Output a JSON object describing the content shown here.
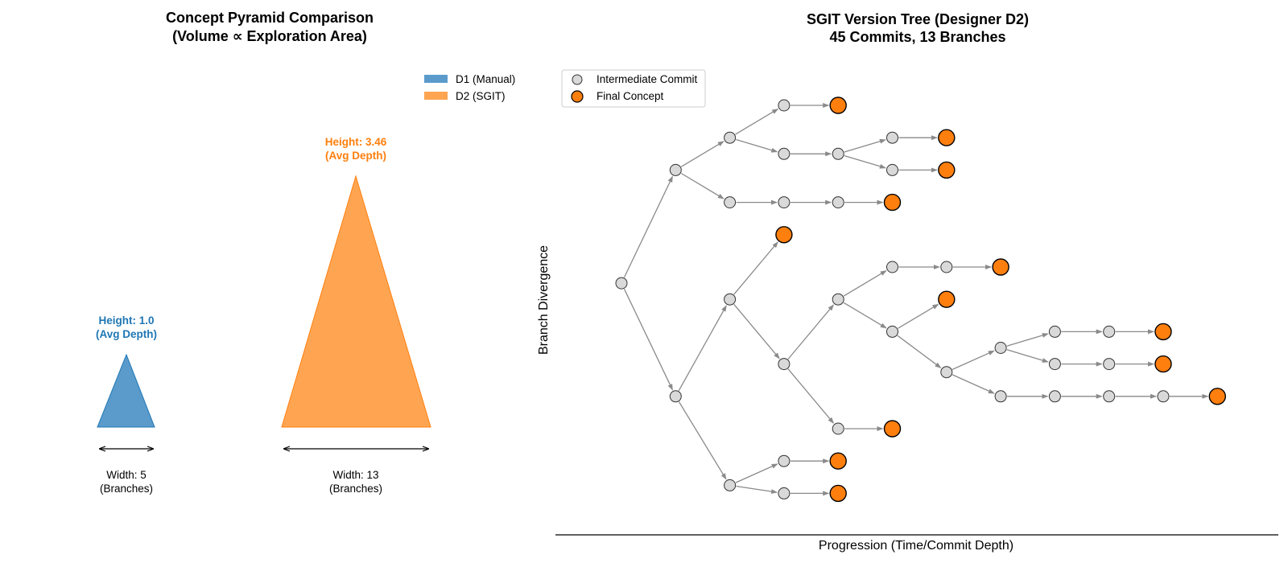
{
  "left_panel": {
    "title_line1": "Concept Pyramid Comparison",
    "title_line2": "(Volume ∝ Exploration Area)",
    "legend": [
      {
        "label": "D1 (Manual)",
        "color": "#5a9bcc"
      },
      {
        "label": "D2 (SGIT)",
        "color": "#ffa552"
      }
    ],
    "pyramids": [
      {
        "name": "D1",
        "height_value": 1.0,
        "width_value": 5,
        "height_label_line1": "Height: 1.0",
        "height_label_line2": "(Avg Depth)",
        "width_label_line1": "Width: 5",
        "width_label_line2": "(Branches)",
        "fill": "#5a9bcc",
        "text_color": "#1f77b4"
      },
      {
        "name": "D2",
        "height_value": 3.46,
        "width_value": 13,
        "height_label_line1": "Height: 3.46",
        "height_label_line2": "(Avg Depth)",
        "width_label_line1": "Width: 13",
        "width_label_line2": "(Branches)",
        "fill": "#ffa552",
        "text_color": "#ff7f0e"
      }
    ]
  },
  "right_panel": {
    "title_line1": "SGIT Version Tree (Designer D2)",
    "title_line2": "45 Commits, 13 Branches",
    "xlabel": "Progression (Time/Commit Depth)",
    "ylabel": "Branch Divergence",
    "legend": [
      {
        "label": "Intermediate Commit",
        "kind": "intermediate"
      },
      {
        "label": "Final Concept",
        "kind": "final"
      }
    ],
    "colors": {
      "intermediate": "#d9d9d9",
      "final": "#ff7f0e",
      "edge": "#8a8a8a"
    },
    "tree": {
      "nodes": [
        {
          "id": "n0",
          "depth": 0,
          "row": 5.5,
          "final": false
        },
        {
          "id": "n1",
          "depth": 1,
          "row": 2,
          "final": false
        },
        {
          "id": "n2",
          "depth": 1,
          "row": 9,
          "final": false
        },
        {
          "id": "n3",
          "depth": 2,
          "row": 1,
          "final": false
        },
        {
          "id": "n4",
          "depth": 2,
          "row": 3,
          "final": false
        },
        {
          "id": "n5",
          "depth": 3,
          "row": 0,
          "final": false
        },
        {
          "id": "n6",
          "depth": 4,
          "row": 0,
          "final": true
        },
        {
          "id": "n7",
          "depth": 3,
          "row": 1.5,
          "final": false
        },
        {
          "id": "n8",
          "depth": 4,
          "row": 1.5,
          "final": false
        },
        {
          "id": "n9",
          "depth": 5,
          "row": 1,
          "final": false
        },
        {
          "id": "n10",
          "depth": 6,
          "row": 1,
          "final": true
        },
        {
          "id": "n11",
          "depth": 5,
          "row": 2,
          "final": false
        },
        {
          "id": "n12",
          "depth": 6,
          "row": 2,
          "final": true
        },
        {
          "id": "n13",
          "depth": 3,
          "row": 3,
          "final": false
        },
        {
          "id": "n14",
          "depth": 4,
          "row": 3,
          "final": false
        },
        {
          "id": "n15",
          "depth": 5,
          "row": 3,
          "final": true
        },
        {
          "id": "n16",
          "depth": 2,
          "row": 6,
          "final": false
        },
        {
          "id": "n17",
          "depth": 3,
          "row": 4,
          "final": true
        },
        {
          "id": "n18",
          "depth": 3,
          "row": 8,
          "final": false
        },
        {
          "id": "n19",
          "depth": 4,
          "row": 6,
          "final": false
        },
        {
          "id": "n20",
          "depth": 5,
          "row": 5,
          "final": false
        },
        {
          "id": "n21",
          "depth": 6,
          "row": 5,
          "final": false
        },
        {
          "id": "n22",
          "depth": 7,
          "row": 5,
          "final": true
        },
        {
          "id": "n23",
          "depth": 5,
          "row": 7,
          "final": false
        },
        {
          "id": "n24",
          "depth": 6,
          "row": 6,
          "final": true
        },
        {
          "id": "n25",
          "depth": 6,
          "row": 8.25,
          "final": false
        },
        {
          "id": "n26",
          "depth": 7,
          "row": 7.5,
          "final": false
        },
        {
          "id": "n27",
          "depth": 8,
          "row": 7,
          "final": false
        },
        {
          "id": "n28",
          "depth": 9,
          "row": 7,
          "final": false
        },
        {
          "id": "n29",
          "depth": 10,
          "row": 7,
          "final": true
        },
        {
          "id": "n30",
          "depth": 8,
          "row": 8,
          "final": false
        },
        {
          "id": "n31",
          "depth": 9,
          "row": 8,
          "final": false
        },
        {
          "id": "n32",
          "depth": 10,
          "row": 8,
          "final": true
        },
        {
          "id": "n33",
          "depth": 7,
          "row": 9,
          "final": false
        },
        {
          "id": "n34",
          "depth": 8,
          "row": 9,
          "final": false
        },
        {
          "id": "n35",
          "depth": 9,
          "row": 9,
          "final": false
        },
        {
          "id": "n36",
          "depth": 10,
          "row": 9,
          "final": false
        },
        {
          "id": "n37",
          "depth": 11,
          "row": 9,
          "final": true
        },
        {
          "id": "n38",
          "depth": 4,
          "row": 10,
          "final": false
        },
        {
          "id": "n39",
          "depth": 5,
          "row": 10,
          "final": true
        },
        {
          "id": "n40",
          "depth": 2,
          "row": 11.75,
          "final": false
        },
        {
          "id": "n41",
          "depth": 3,
          "row": 11,
          "final": false
        },
        {
          "id": "n42",
          "depth": 4,
          "row": 11,
          "final": true
        },
        {
          "id": "n43",
          "depth": 3,
          "row": 12,
          "final": false
        },
        {
          "id": "n44",
          "depth": 4,
          "row": 12,
          "final": true
        }
      ],
      "edges": [
        [
          "n0",
          "n1"
        ],
        [
          "n0",
          "n2"
        ],
        [
          "n1",
          "n3"
        ],
        [
          "n1",
          "n4"
        ],
        [
          "n3",
          "n5"
        ],
        [
          "n5",
          "n6"
        ],
        [
          "n3",
          "n7"
        ],
        [
          "n7",
          "n8"
        ],
        [
          "n8",
          "n9"
        ],
        [
          "n9",
          "n10"
        ],
        [
          "n8",
          "n11"
        ],
        [
          "n11",
          "n12"
        ],
        [
          "n4",
          "n13"
        ],
        [
          "n13",
          "n14"
        ],
        [
          "n14",
          "n15"
        ],
        [
          "n2",
          "n16"
        ],
        [
          "n2",
          "n40"
        ],
        [
          "n16",
          "n17"
        ],
        [
          "n16",
          "n18"
        ],
        [
          "n18",
          "n19"
        ],
        [
          "n19",
          "n20"
        ],
        [
          "n20",
          "n21"
        ],
        [
          "n21",
          "n22"
        ],
        [
          "n19",
          "n23"
        ],
        [
          "n23",
          "n24"
        ],
        [
          "n23",
          "n25"
        ],
        [
          "n25",
          "n26"
        ],
        [
          "n26",
          "n27"
        ],
        [
          "n27",
          "n28"
        ],
        [
          "n28",
          "n29"
        ],
        [
          "n26",
          "n30"
        ],
        [
          "n30",
          "n31"
        ],
        [
          "n31",
          "n32"
        ],
        [
          "n25",
          "n33"
        ],
        [
          "n33",
          "n34"
        ],
        [
          "n34",
          "n35"
        ],
        [
          "n35",
          "n36"
        ],
        [
          "n36",
          "n37"
        ],
        [
          "n18",
          "n38"
        ],
        [
          "n38",
          "n39"
        ],
        [
          "n40",
          "n41"
        ],
        [
          "n41",
          "n42"
        ],
        [
          "n40",
          "n43"
        ],
        [
          "n43",
          "n44"
        ]
      ]
    }
  }
}
